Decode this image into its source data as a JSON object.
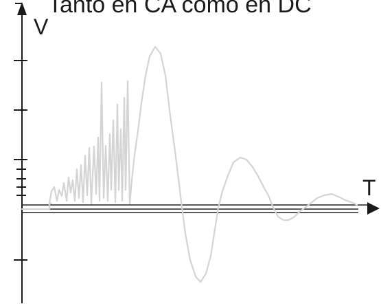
{
  "title": "Tanto en CA como en DC",
  "axes": {
    "y_label": "V",
    "x_label": "T"
  },
  "colors": {
    "axis": "#1a1a1a",
    "signal": "#d4d4d4",
    "baseline": "#222222",
    "background": "#ffffff"
  }
}
